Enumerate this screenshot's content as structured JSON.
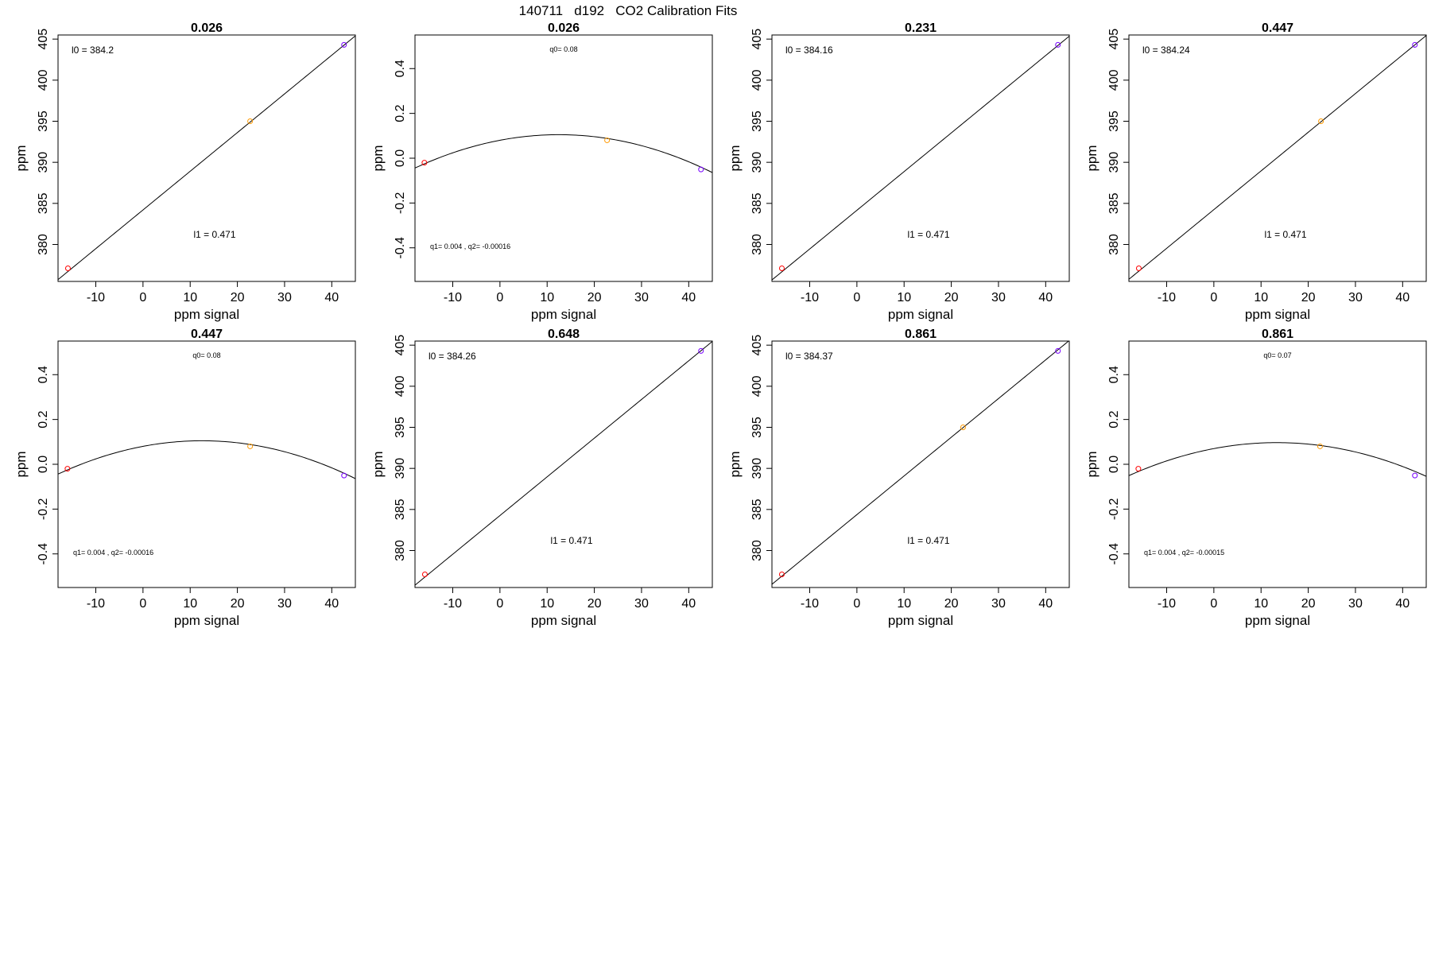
{
  "page": {
    "title": "140711   d192   CO2 Calibration Fits"
  },
  "chart_data": [
    {
      "type": "scatter",
      "model": "linear",
      "title": "0.026",
      "xlabel": "ppm signal",
      "ylabel": "ppm",
      "xlim": [
        -18,
        45
      ],
      "ylim": [
        375.5,
        405.5
      ],
      "xticks": [
        -10,
        0,
        10,
        20,
        30,
        40
      ],
      "yticks": [
        380,
        385,
        390,
        395,
        400,
        405
      ],
      "points": [
        {
          "x": -15.9,
          "y": 377.1,
          "color": "#ff0000"
        },
        {
          "x": 22.7,
          "y": 395.0,
          "color": "#ff9900"
        },
        {
          "x": 42.6,
          "y": 404.3,
          "color": "#7700ff"
        }
      ],
      "fit": {
        "intercept": 384.2,
        "slope": 0.471
      },
      "annotations": {
        "top": "l0 =  384.2",
        "bottom": "l1 =  0.471"
      }
    },
    {
      "type": "scatter",
      "model": "quadratic",
      "title": "0.026",
      "xlabel": "ppm signal",
      "ylabel": "ppm",
      "xlim": [
        -18,
        45
      ],
      "ylim": [
        -0.55,
        0.55
      ],
      "xticks": [
        -10,
        0,
        10,
        20,
        30,
        40
      ],
      "yticks": [
        -0.4,
        -0.2,
        0.0,
        0.2,
        0.4
      ],
      "ytick_labels": [
        "-0.4",
        "-0.2",
        "0.0",
        "0.2",
        "0.4"
      ],
      "points": [
        {
          "x": -16.0,
          "y": -0.02,
          "color": "#ff0000"
        },
        {
          "x": 22.7,
          "y": 0.08,
          "color": "#ff9900"
        },
        {
          "x": 42.6,
          "y": -0.05,
          "color": "#7700ff"
        }
      ],
      "fit": {
        "q0": 0.08,
        "q1": 0.004,
        "q2": -0.00016
      },
      "annotations": {
        "top": "q0= 0.08",
        "bottom": "q1= 0.004 , q2= -0.00016"
      }
    },
    {
      "type": "scatter",
      "model": "linear",
      "title": "0.231",
      "xlabel": "ppm signal",
      "ylabel": "ppm",
      "xlim": [
        -18,
        45
      ],
      "ylim": [
        375.5,
        405.5
      ],
      "xticks": [
        -10,
        0,
        10,
        20,
        30,
        40
      ],
      "yticks": [
        380,
        385,
        390,
        395,
        400,
        405
      ],
      "points": [
        {
          "x": -15.9,
          "y": 377.1,
          "color": "#ff0000"
        },
        {
          "x": 42.6,
          "y": 404.3,
          "color": "#7700ff"
        }
      ],
      "fit": {
        "intercept": 384.16,
        "slope": 0.471
      },
      "annotations": {
        "top": "l0 =  384.16",
        "bottom": "l1 =  0.471"
      }
    },
    {
      "type": "scatter",
      "model": "linear",
      "title": "0.447",
      "xlabel": "ppm signal",
      "ylabel": "ppm",
      "xlim": [
        -18,
        45
      ],
      "ylim": [
        375.5,
        405.5
      ],
      "xticks": [
        -10,
        0,
        10,
        20,
        30,
        40
      ],
      "yticks": [
        380,
        385,
        390,
        395,
        400,
        405
      ],
      "points": [
        {
          "x": -15.9,
          "y": 377.1,
          "color": "#ff0000"
        },
        {
          "x": 22.7,
          "y": 395.0,
          "color": "#ff9900"
        },
        {
          "x": 42.6,
          "y": 404.3,
          "color": "#7700ff"
        }
      ],
      "fit": {
        "intercept": 384.24,
        "slope": 0.471
      },
      "annotations": {
        "top": "l0 =  384.24",
        "bottom": "l1 =  0.471"
      }
    },
    {
      "type": "scatter",
      "model": "quadratic",
      "title": "0.447",
      "xlabel": "ppm signal",
      "ylabel": "ppm",
      "xlim": [
        -18,
        45
      ],
      "ylim": [
        -0.55,
        0.55
      ],
      "xticks": [
        -10,
        0,
        10,
        20,
        30,
        40
      ],
      "yticks": [
        -0.4,
        -0.2,
        0.0,
        0.2,
        0.4
      ],
      "ytick_labels": [
        "-0.4",
        "-0.2",
        "0.0",
        "0.2",
        "0.4"
      ],
      "points": [
        {
          "x": -16.0,
          "y": -0.02,
          "color": "#ff0000"
        },
        {
          "x": 22.7,
          "y": 0.08,
          "color": "#ff9900"
        },
        {
          "x": 42.6,
          "y": -0.05,
          "color": "#7700ff"
        }
      ],
      "fit": {
        "q0": 0.08,
        "q1": 0.004,
        "q2": -0.00016
      },
      "annotations": {
        "top": "q0= 0.08",
        "bottom": "q1= 0.004 , q2= -0.00016"
      }
    },
    {
      "type": "scatter",
      "model": "linear",
      "title": "0.648",
      "xlabel": "ppm signal",
      "ylabel": "ppm",
      "xlim": [
        -18,
        45
      ],
      "ylim": [
        375.5,
        405.5
      ],
      "xticks": [
        -10,
        0,
        10,
        20,
        30,
        40
      ],
      "yticks": [
        380,
        385,
        390,
        395,
        400,
        405
      ],
      "points": [
        {
          "x": -15.9,
          "y": 377.1,
          "color": "#ff0000"
        },
        {
          "x": 42.6,
          "y": 404.3,
          "color": "#7700ff"
        }
      ],
      "fit": {
        "intercept": 384.26,
        "slope": 0.471
      },
      "annotations": {
        "top": "l0 =  384.26",
        "bottom": "l1 =  0.471"
      }
    },
    {
      "type": "scatter",
      "model": "linear",
      "title": "0.861",
      "xlabel": "ppm signal",
      "ylabel": "ppm",
      "xlim": [
        -18,
        45
      ],
      "ylim": [
        375.5,
        405.5
      ],
      "xticks": [
        -10,
        0,
        10,
        20,
        30,
        40
      ],
      "yticks": [
        380,
        385,
        390,
        395,
        400,
        405
      ],
      "points": [
        {
          "x": -15.9,
          "y": 377.1,
          "color": "#ff0000"
        },
        {
          "x": 22.5,
          "y": 395.0,
          "color": "#ff9900"
        },
        {
          "x": 42.6,
          "y": 404.3,
          "color": "#7700ff"
        }
      ],
      "fit": {
        "intercept": 384.37,
        "slope": 0.471
      },
      "annotations": {
        "top": "l0 =  384.37",
        "bottom": "l1 =  0.471"
      }
    },
    {
      "type": "scatter",
      "model": "quadratic",
      "title": "0.861",
      "xlabel": "ppm signal",
      "ylabel": "ppm",
      "xlim": [
        -18,
        45
      ],
      "ylim": [
        -0.55,
        0.55
      ],
      "xticks": [
        -10,
        0,
        10,
        20,
        30,
        40
      ],
      "yticks": [
        -0.4,
        -0.2,
        0.0,
        0.2,
        0.4
      ],
      "ytick_labels": [
        "-0.4",
        "-0.2",
        "0.0",
        "0.2",
        "0.4"
      ],
      "points": [
        {
          "x": -16.0,
          "y": -0.02,
          "color": "#ff0000"
        },
        {
          "x": 22.5,
          "y": 0.08,
          "color": "#ff9900"
        },
        {
          "x": 42.6,
          "y": -0.05,
          "color": "#7700ff"
        }
      ],
      "fit": {
        "q0": 0.07,
        "q1": 0.004,
        "q2": -0.00015
      },
      "annotations": {
        "top": "q0= 0.07",
        "bottom": "q1= 0.004 , q2= -0.00015"
      }
    }
  ]
}
